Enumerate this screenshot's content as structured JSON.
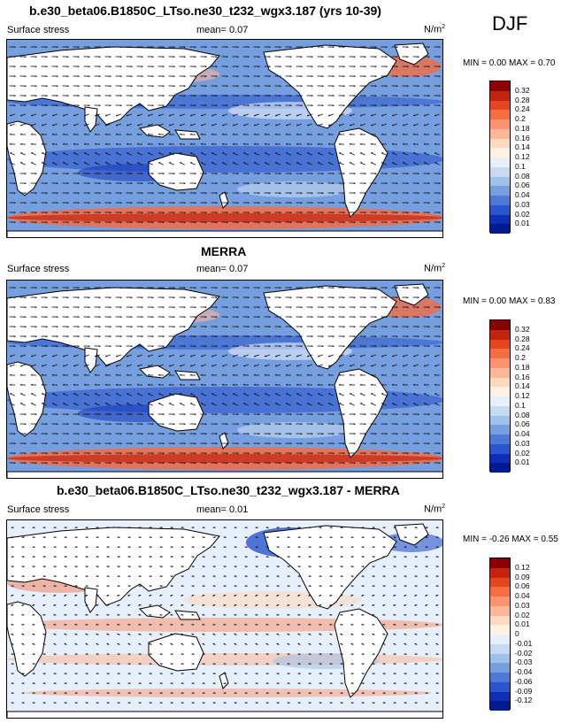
{
  "season": "DJF",
  "panels": [
    {
      "title": "b.e30_beta06.B1850C_LTso.ne30_t232_wgx3.187 (yrs 10-39)",
      "variable": "Surface stress",
      "mean": "mean=  0.07",
      "units_base": "N/m",
      "units_exp": "2",
      "minmax": "MIN =  0.00 MAX =  0.70",
      "colorbar": {
        "labels": [
          "0.32",
          "0.28",
          "0.24",
          "0.2",
          "0.18",
          "0.16",
          "0.14",
          "0.12",
          "0.1",
          "0.08",
          "0.06",
          "0.04",
          "0.03",
          "0.02",
          "0.01"
        ],
        "colors": [
          "#8b0000",
          "#c3240f",
          "#e6461f",
          "#f46d43",
          "#f99370",
          "#fbb797",
          "#fdd9bf",
          "#fff1e1",
          "#e6effa",
          "#c6dbf2",
          "#9ec1ea",
          "#769fe0",
          "#4f79d6",
          "#2a55cc",
          "#0d2fb8",
          "#001a8f"
        ]
      }
    },
    {
      "title": "MERRA",
      "variable": "Surface stress",
      "mean": "mean=  0.07",
      "units_base": "N/m",
      "units_exp": "2",
      "minmax": "MIN =  0.00 MAX =  0.83",
      "colorbar": {
        "labels": [
          "0.32",
          "0.28",
          "0.24",
          "0.2",
          "0.18",
          "0.16",
          "0.14",
          "0.12",
          "0.1",
          "0.08",
          "0.06",
          "0.04",
          "0.03",
          "0.02",
          "0.01"
        ],
        "colors": [
          "#8b0000",
          "#c3240f",
          "#e6461f",
          "#f46d43",
          "#f99370",
          "#fbb797",
          "#fdd9bf",
          "#fff1e1",
          "#e6effa",
          "#c6dbf2",
          "#9ec1ea",
          "#769fe0",
          "#4f79d6",
          "#2a55cc",
          "#0d2fb8",
          "#001a8f"
        ]
      }
    },
    {
      "title": "b.e30_beta06.B1850C_LTso.ne30_t232_wgx3.187 - MERRA",
      "variable": "Surface stress",
      "mean": "mean=  0.01",
      "units_base": "N/m",
      "units_exp": "2",
      "minmax": "MIN = -0.26 MAX =  0.55",
      "colorbar": {
        "labels": [
          "0.12",
          "0.09",
          "0.06",
          "0.04",
          "0.03",
          "0.02",
          "0.01",
          "0",
          "-0.01",
          "-0.02",
          "-0.03",
          "-0.04",
          "-0.06",
          "-0.09",
          "-0.12"
        ],
        "colors": [
          "#8b0000",
          "#c3240f",
          "#e6461f",
          "#f46d43",
          "#f99370",
          "#fbb797",
          "#fdd9bf",
          "#fff1e1",
          "#e6effa",
          "#c6dbf2",
          "#9ec1ea",
          "#769fe0",
          "#4f79d6",
          "#2a55cc",
          "#0d2fb8",
          "#001a8f"
        ]
      }
    }
  ],
  "map_style": {
    "land": "#ffffff",
    "coast": "#000000",
    "vector": "#111111"
  }
}
